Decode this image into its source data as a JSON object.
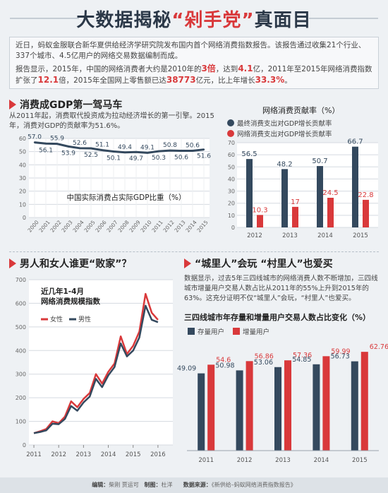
{
  "title": {
    "prefix": "大数据揭秘",
    "highlight": "“剁手党”",
    "suffix": "真面目"
  },
  "intro": {
    "p1": "近日，蚂蚁金服联合新华夏供给经济学研究院发布国内首个网络消费指数报告。该报告通过收集21个行业、337个城市、4.5亿用户的网络交易数据编制而成。",
    "p2a": "报告显示，2015年，中国的网络消费者大约是2010年的",
    "n1": "3倍",
    "p2b": "，达到",
    "n2": "4.1",
    "p2c": "亿，2011年至2015年网络消费指数扩张了",
    "n3": "12.1",
    "p2d": "倍，2015年全国网上零售额已达",
    "n4": "38773",
    "p2e": "亿元，比上年增长",
    "n5": "33.3%",
    "p2f": "。"
  },
  "sections": {
    "s1_title": "消费成GDP第一驾马车",
    "s1_desc": "从2011年起，消费取代投资成为拉动经济增长的第一引擎。2015年，消费对GDP的贡献率为51.6%。",
    "s2_title": "男人和女人谁更“败家”？",
    "s3_title": "“城里人”会玩 “村里人”也爱买",
    "s3_desc": "数据显示，过去5年三四线城市的网络消费人数不断增加，三四线城市增量用户交易人数占比从2011年的55%上升到2015年的63%。这充分证明不仅“城里人”会玩，“村里人”也爱买。"
  },
  "footer": {
    "editor_label": "编辑：",
    "editors": "柴刚 贾运可",
    "design_label": "制图：",
    "designer": "杜洋",
    "source_label": "数据来源：",
    "source": "《新供给–蚂蚁网络消费指数报告》"
  },
  "colors": {
    "red": "#d9393b",
    "navy": "#34495e",
    "dark": "#2b3848"
  },
  "chart_data": [
    {
      "type": "line",
      "title": "中国实际消费占实际GDP比重（%）",
      "x": [
        "2000",
        "2001",
        "2002",
        "2003",
        "2004",
        "2005",
        "2006",
        "2007",
        "2008",
        "2009",
        "2010",
        "2011",
        "2012",
        "2013",
        "2014",
        "2015"
      ],
      "values": [
        57.0,
        56.1,
        55.9,
        53.9,
        52.6,
        52.5,
        51.1,
        50.1,
        49.4,
        49.7,
        49.1,
        50.3,
        50.8,
        50.6,
        50.6,
        51.6
      ],
      "labels": [
        "57.0",
        "56.1",
        "55.9",
        "53.9",
        "52.6",
        "52.5",
        "51.1",
        "50.1",
        "49.4",
        "49.7",
        "49.1",
        "50.3",
        "50.8",
        "50.6",
        "50.6",
        "51.6"
      ],
      "yticks": [
        0,
        10,
        20,
        30,
        40,
        50,
        60
      ],
      "ylim": [
        0,
        60
      ]
    },
    {
      "type": "bar",
      "title": "网络消费贡献率（%）",
      "categories": [
        "2012",
        "2013",
        "2014",
        "2015"
      ],
      "series": [
        {
          "name": "最终消费支出对GDP增长贡献率",
          "values": [
            56.5,
            48.2,
            50.7,
            66.7
          ],
          "color": "#34495e"
        },
        {
          "name": "网络消费支出对GDP增长贡献率",
          "values": [
            10.3,
            17,
            24.5,
            22.8
          ],
          "color": "#d9393b"
        }
      ],
      "value_labels": [
        [
          "56.5",
          "48.2",
          "50.7",
          "66.7"
        ],
        [
          "10.3",
          "17",
          "24.5",
          "22.8"
        ]
      ],
      "yticks": [
        0,
        10,
        20,
        30,
        40,
        50,
        60,
        70
      ],
      "ylim": [
        0,
        70
      ]
    },
    {
      "type": "line",
      "title": "近几年1-4月\n网络消费规模指数",
      "title_lines": [
        "近几年1-4月",
        "网络消费规模指数"
      ],
      "xticks": [
        "2011",
        "2012",
        "2013",
        "2014",
        "2015",
        "2016"
      ],
      "yticks": [
        0,
        100,
        200,
        300,
        400,
        500,
        600,
        700
      ],
      "ylim": [
        0,
        700
      ],
      "series": [
        {
          "name": "女性",
          "color": "#d9393b",
          "x": [
            2011.0,
            2011.25,
            2011.5,
            2011.75,
            2012.0,
            2012.25,
            2012.5,
            2012.75,
            2013.0,
            2013.25,
            2013.5,
            2013.75,
            2014.0,
            2014.25,
            2014.5,
            2014.75,
            2015.0,
            2015.25,
            2015.5,
            2015.75,
            2016.0
          ],
          "values": [
            50,
            58,
            68,
            100,
            92,
            120,
            185,
            160,
            195,
            220,
            300,
            260,
            310,
            345,
            460,
            385,
            420,
            480,
            640,
            560,
            530
          ]
        },
        {
          "name": "男性",
          "color": "#34495e",
          "x": [
            2011.0,
            2011.25,
            2011.5,
            2011.75,
            2012.0,
            2012.25,
            2012.5,
            2012.75,
            2013.0,
            2013.25,
            2013.5,
            2013.75,
            2014.0,
            2014.25,
            2014.5,
            2014.75,
            2015.0,
            2015.25,
            2015.5,
            2015.75,
            2016.0
          ],
          "values": [
            50,
            55,
            62,
            90,
            88,
            110,
            165,
            145,
            180,
            205,
            280,
            245,
            295,
            330,
            430,
            375,
            400,
            455,
            590,
            530,
            520
          ]
        }
      ]
    },
    {
      "type": "bar",
      "title": "三四线城市年存量和增量用户交易人数占比变化（%）",
      "categories": [
        "2011",
        "2012",
        "2013",
        "2014",
        "2015"
      ],
      "series": [
        {
          "name": "存量用户",
          "values": [
            49.09,
            50.98,
            53.06,
            54.85,
            56.73
          ],
          "color": "#34495e"
        },
        {
          "name": "增量用户",
          "values": [
            54.6,
            56.86,
            57.36,
            59.99,
            62.76
          ],
          "color": "#d9393b"
        }
      ],
      "value_labels": [
        [
          "49.09",
          "50.98",
          "53.06",
          "54.85",
          "56.73"
        ],
        [
          "54.6",
          "56.86",
          "57.36",
          "59.99",
          "62.76"
        ]
      ],
      "ylim": [
        0,
        70
      ]
    }
  ]
}
